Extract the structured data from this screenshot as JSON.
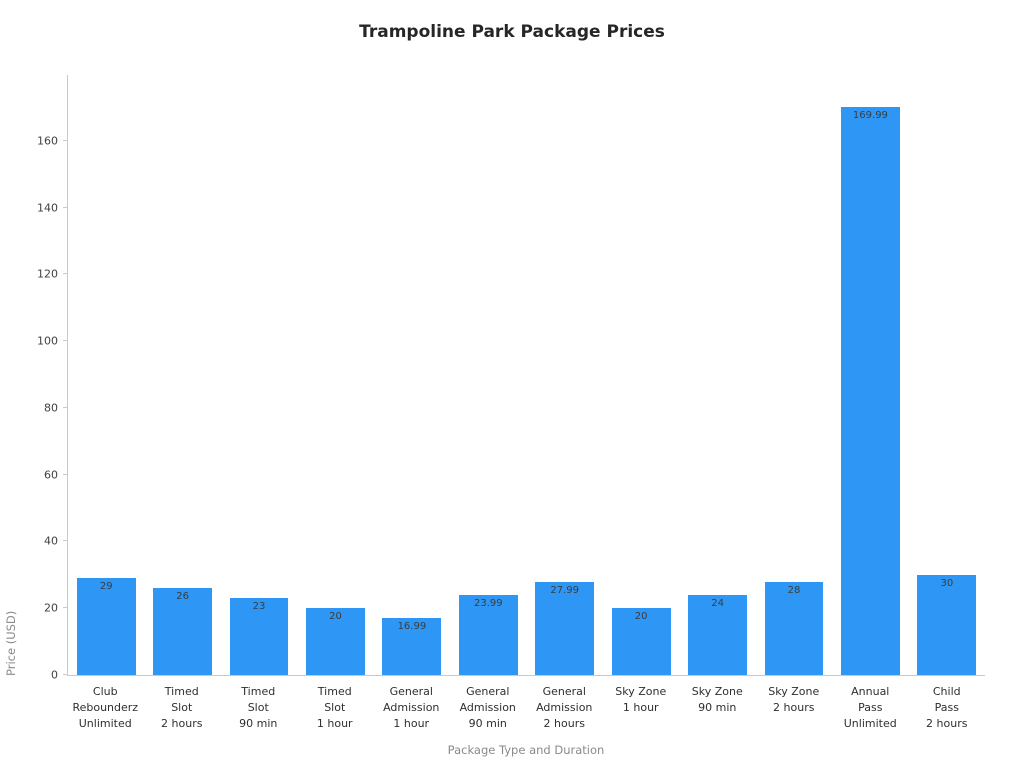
{
  "chart_data": {
    "type": "bar",
    "title": "Trampoline Park Package Prices",
    "xlabel": "Package Type and Duration",
    "ylabel": "Price (USD)",
    "ylim": [
      0,
      180
    ],
    "yticks": [
      0,
      20,
      40,
      60,
      80,
      100,
      120,
      140,
      160
    ],
    "grid": false,
    "legend": "none",
    "bar_color": "#2e96f5",
    "categories": [
      [
        "Club",
        "Rebounderz",
        "Unlimited"
      ],
      [
        "Timed",
        "Slot",
        "2 hours"
      ],
      [
        "Timed",
        "Slot",
        "90 min"
      ],
      [
        "Timed",
        "Slot",
        "1 hour"
      ],
      [
        "General",
        "Admission",
        "1 hour"
      ],
      [
        "General",
        "Admission",
        "90 min"
      ],
      [
        "General",
        "Admission",
        "2 hours"
      ],
      [
        "Sky Zone",
        "1 hour"
      ],
      [
        "Sky Zone",
        "90 min"
      ],
      [
        "Sky Zone",
        "2 hours"
      ],
      [
        "Annual",
        "Pass",
        "Unlimited"
      ],
      [
        "Child",
        "Pass",
        "2 hours"
      ]
    ],
    "values": [
      29,
      26,
      23,
      20,
      16.99,
      23.99,
      27.99,
      20,
      24,
      28,
      169.99,
      30
    ],
    "value_labels": [
      "29",
      "26",
      "23",
      "20",
      "16.99",
      "23.99",
      "27.99",
      "20",
      "24",
      "28",
      "169.99",
      "30"
    ]
  }
}
